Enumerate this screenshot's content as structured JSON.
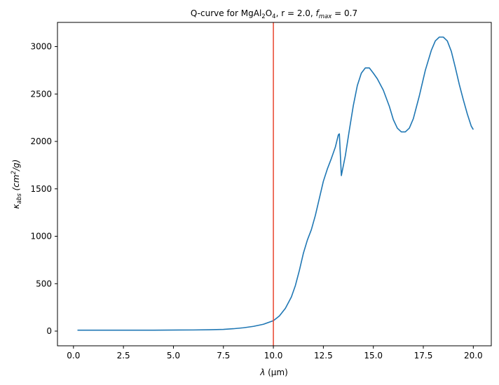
{
  "chart_data": {
    "type": "line",
    "title": {
      "pre": "Q-curve for MgAl",
      "sub1": "2",
      "mid1": "O",
      "sub2": "4",
      "mid2": ", r = 2.0, ",
      "f_sym": "f",
      "f_sub": "max",
      "post": " = 0.7"
    },
    "xlabel": {
      "sym": "λ",
      "unit": " (μm)"
    },
    "ylabel": {
      "sym": "κ",
      "sub": "abs",
      "unit_pre": " (cm",
      "unit_sup": "2",
      "unit_post": "/g)"
    },
    "xlim": [
      -0.8,
      20.9
    ],
    "ylim": [
      -155,
      3255
    ],
    "xticks": [
      0.0,
      2.5,
      5.0,
      7.5,
      10.0,
      12.5,
      15.0,
      17.5,
      20.0
    ],
    "xtick_labels": [
      "0.0",
      "2.5",
      "5.0",
      "7.5",
      "10.0",
      "12.5",
      "15.0",
      "17.5",
      "20.0"
    ],
    "yticks": [
      0,
      500,
      1000,
      1500,
      2000,
      2500,
      3000
    ],
    "ytick_labels": [
      "0",
      "500",
      "1000",
      "1500",
      "2000",
      "2500",
      "3000"
    ],
    "grid": false,
    "legend": "none",
    "series": [
      {
        "color": "#1f77b4",
        "x": [
          0.2,
          2.0,
          4.0,
          6.0,
          6.8,
          7.5,
          8.0,
          8.5,
          9.0,
          9.5,
          10.0,
          10.3,
          10.6,
          10.9,
          11.1,
          11.3,
          11.5,
          11.7,
          11.9,
          12.1,
          12.3,
          12.5,
          12.7,
          12.9,
          13.1,
          13.25,
          13.3,
          13.4,
          13.6,
          13.8,
          14.0,
          14.2,
          14.4,
          14.6,
          14.8,
          15.0,
          15.2,
          15.5,
          15.8,
          16.0,
          16.2,
          16.4,
          16.6,
          16.8,
          17.0,
          17.3,
          17.6,
          17.9,
          18.1,
          18.3,
          18.5,
          18.7,
          18.9,
          19.1,
          19.3,
          19.5,
          19.7,
          19.9,
          20.0
        ],
        "y": [
          10,
          10,
          10,
          12,
          14,
          18,
          25,
          35,
          50,
          72,
          110,
          160,
          240,
          360,
          480,
          640,
          820,
          960,
          1070,
          1220,
          1400,
          1580,
          1710,
          1820,
          1940,
          2070,
          2080,
          1640,
          1850,
          2120,
          2380,
          2590,
          2720,
          2775,
          2775,
          2720,
          2660,
          2540,
          2370,
          2230,
          2140,
          2100,
          2100,
          2140,
          2240,
          2480,
          2750,
          2960,
          3060,
          3100,
          3100,
          3060,
          2950,
          2780,
          2600,
          2440,
          2290,
          2160,
          2125
        ]
      }
    ],
    "annotations": [
      {
        "type": "vline",
        "x": 10.0,
        "color": "#e8432d"
      }
    ]
  }
}
